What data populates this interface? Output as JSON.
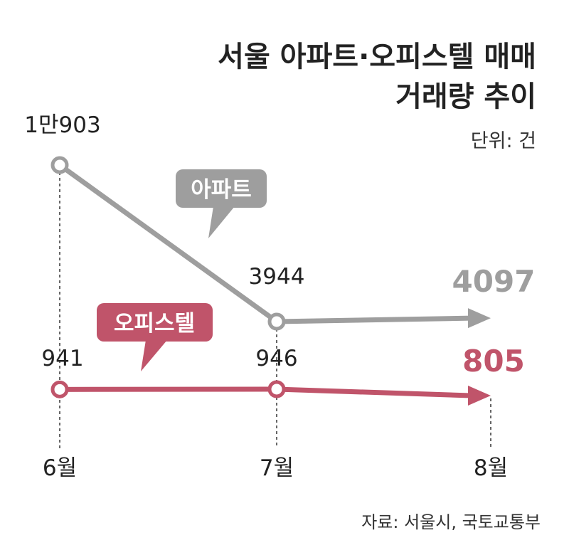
{
  "header": {
    "title_line1": "서울 아파트·오피스텔 매매",
    "title_line2": "거래량 추이",
    "unit": "단위: 건"
  },
  "footer": {
    "source": "자료: 서울시, 국토교통부"
  },
  "colors": {
    "apartment": "#9e9e9e",
    "officetel": "#c0546a",
    "text": "#222222"
  },
  "chart_data": {
    "type": "line",
    "categories": [
      "6월",
      "7월",
      "8월"
    ],
    "series": [
      {
        "name": "아파트",
        "values": [
          10903,
          3944,
          4097
        ],
        "labels": [
          "1만903",
          "3944",
          "4097"
        ],
        "color": "#9e9e9e"
      },
      {
        "name": "오피스텔",
        "values": [
          941,
          946,
          805
        ],
        "labels": [
          "941",
          "946",
          "805"
        ],
        "color": "#c0546a"
      }
    ]
  }
}
